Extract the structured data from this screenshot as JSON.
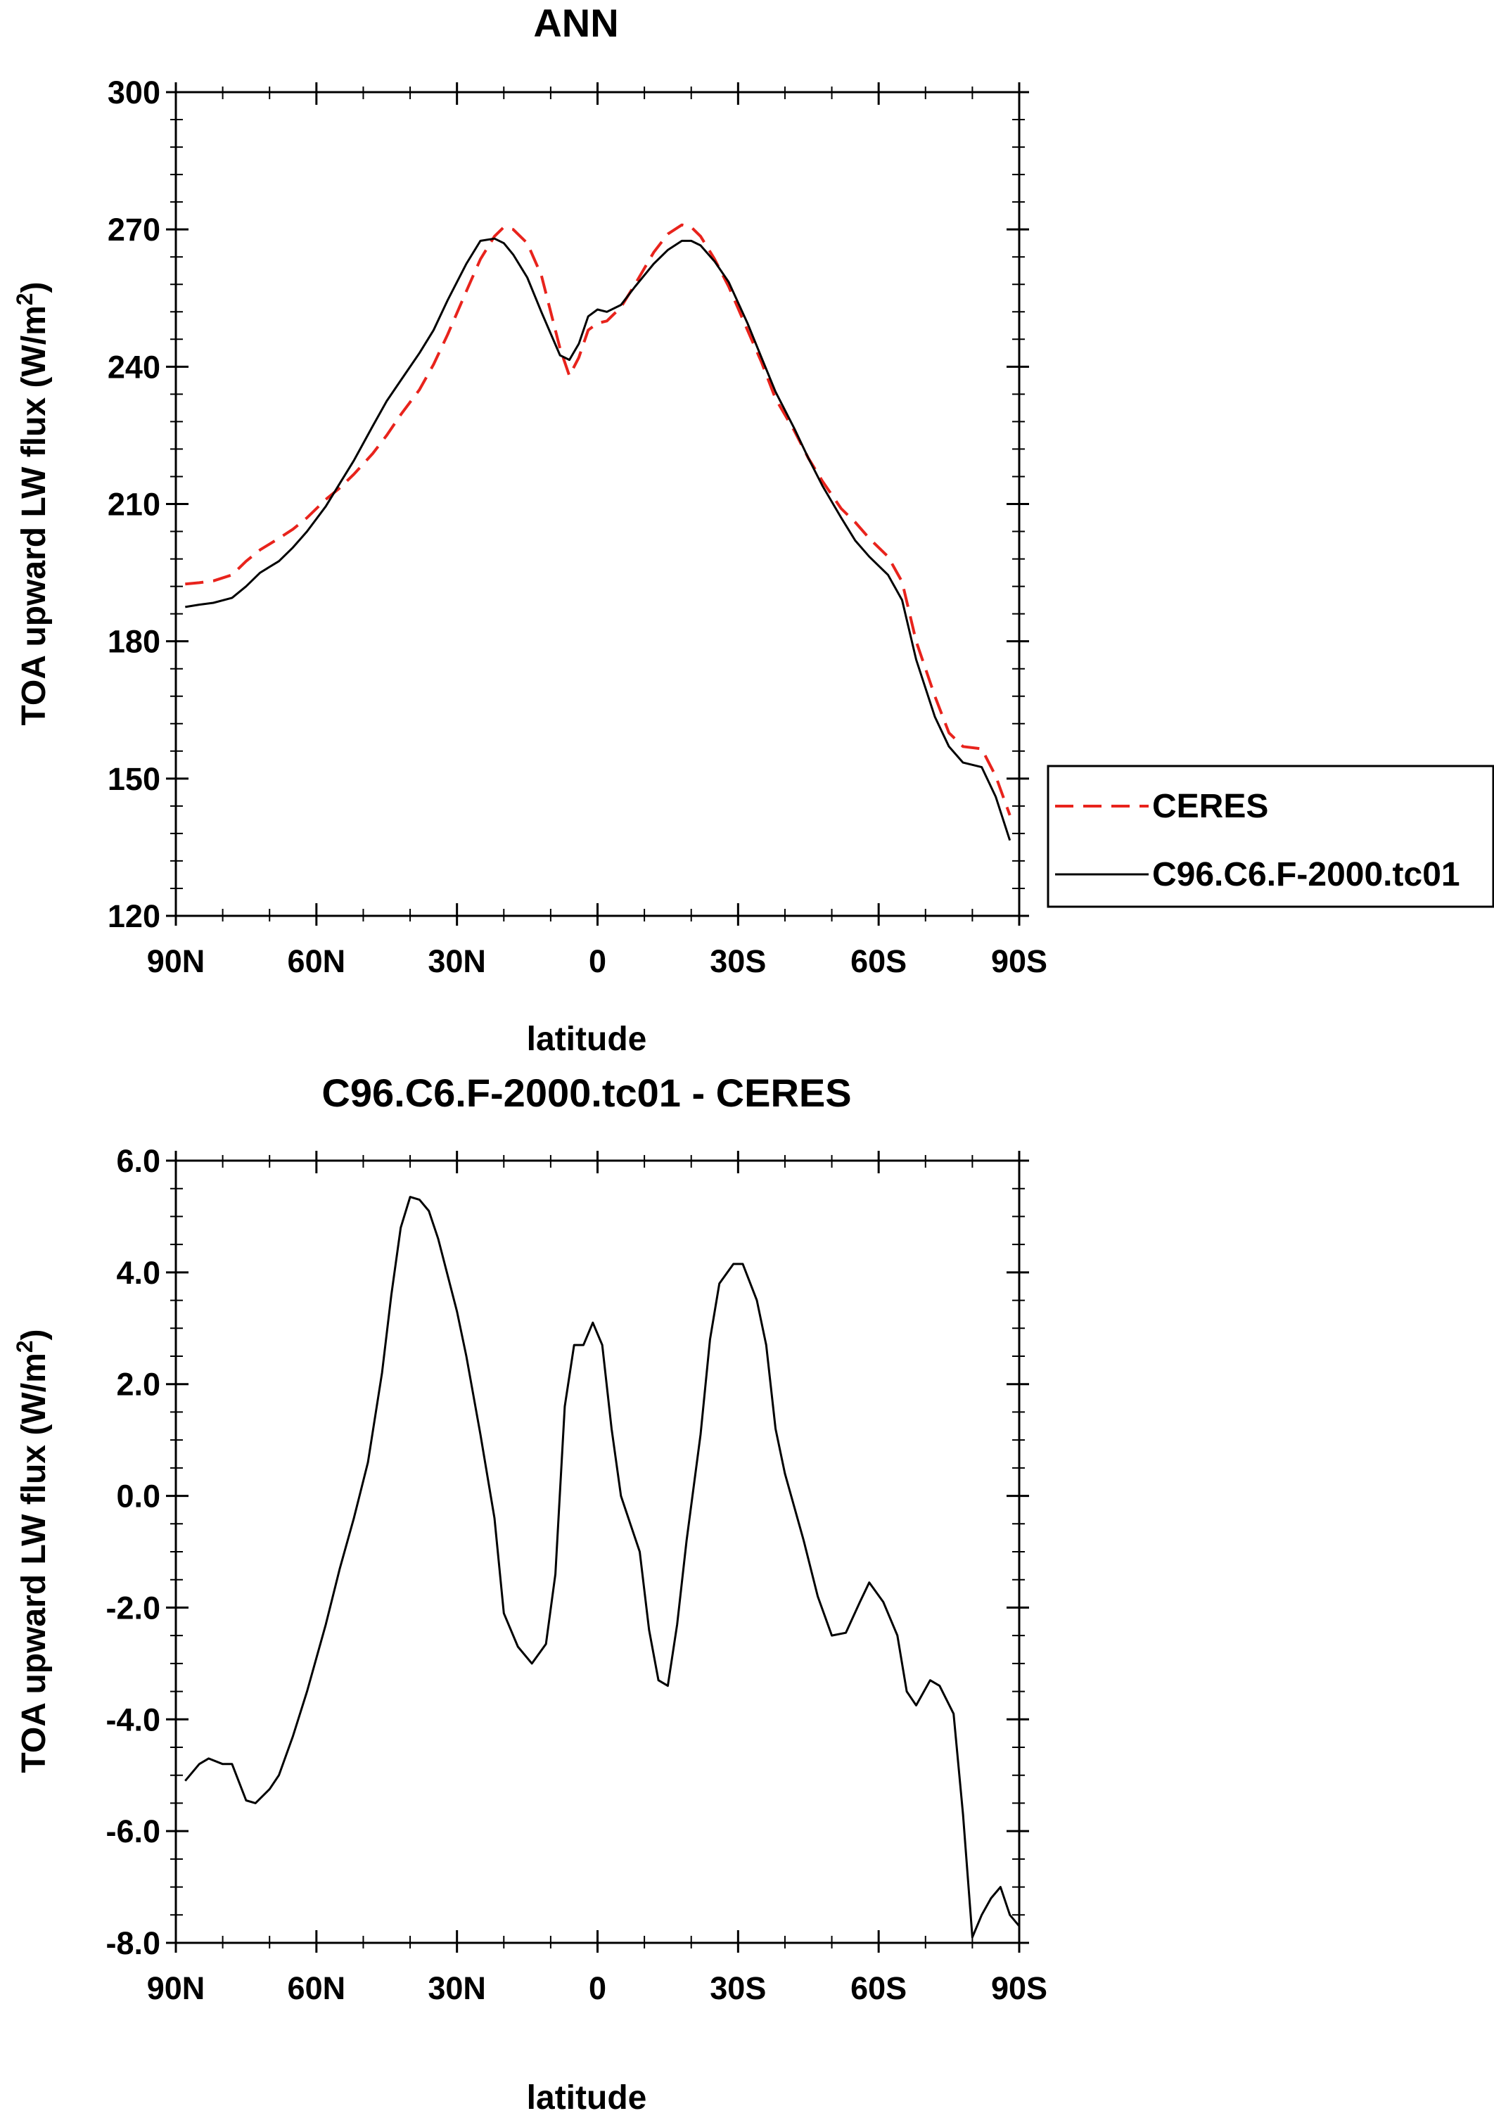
{
  "chart_data": [
    {
      "type": "line",
      "title": "ANN",
      "xlabel": "latitude",
      "ylabel": "TOA upward LW flux (W/m",
      "ylabel_sup": "2",
      "ylabel_end": ")",
      "xlim": [
        -90,
        90
      ],
      "ylim": [
        120,
        300
      ],
      "x_ticks": [
        -90,
        -60,
        -30,
        0,
        30,
        60,
        90
      ],
      "x_tick_labels": [
        "90N",
        "60N",
        "30N",
        "0",
        "30S",
        "60S",
        "90S"
      ],
      "y_ticks": [
        120,
        150,
        180,
        210,
        240,
        270,
        300
      ],
      "y_tick_labels": [
        "120",
        "150",
        "180",
        "210",
        "240",
        "270",
        "300"
      ],
      "legend": {
        "position": "right",
        "entries": [
          "CERES",
          "C96.C6.F-2000.tc01"
        ]
      },
      "series": [
        {
          "name": "CERES",
          "color": "#e8231c",
          "dash": "dashed",
          "x": [
            -88,
            -85,
            -82,
            -78,
            -75,
            -72,
            -68,
            -65,
            -62,
            -58,
            -55,
            -52,
            -48,
            -45,
            -42,
            -38,
            -35,
            -32,
            -28,
            -25,
            -22,
            -20,
            -18,
            -15,
            -12,
            -8,
            -6,
            -4,
            -2,
            0,
            2,
            5,
            8,
            12,
            15,
            18,
            20,
            22,
            25,
            28,
            32,
            35,
            38,
            42,
            45,
            48,
            52,
            55,
            58,
            62,
            65,
            68,
            72,
            75,
            78,
            82,
            85,
            88
          ],
          "values": [
            192.5,
            192.8,
            193.2,
            194.5,
            197.5,
            200,
            202.5,
            204.5,
            207,
            211,
            213.5,
            216.5,
            221,
            225,
            229.5,
            235,
            240.5,
            247,
            256.5,
            263.5,
            268.5,
            270.5,
            270,
            267,
            260,
            244,
            238,
            242,
            248,
            249.5,
            250,
            253,
            258,
            265,
            269,
            271,
            270.5,
            268.5,
            263.5,
            257.5,
            248,
            241,
            233,
            226,
            220,
            215,
            209,
            206,
            202.5,
            198.5,
            193,
            180,
            168,
            160,
            157,
            156.5,
            150.5,
            142
          ]
        },
        {
          "name": "C96.C6.F-2000.tc01",
          "color": "#000000",
          "dash": "solid",
          "x": [
            -88,
            -85,
            -82,
            -78,
            -75,
            -72,
            -68,
            -65,
            -62,
            -58,
            -55,
            -52,
            -48,
            -45,
            -42,
            -38,
            -35,
            -32,
            -28,
            -25,
            -22,
            -20,
            -18,
            -15,
            -12,
            -8,
            -6,
            -4,
            -2,
            0,
            2,
            5,
            8,
            12,
            15,
            18,
            20,
            22,
            25,
            28,
            32,
            35,
            38,
            42,
            45,
            48,
            52,
            55,
            58,
            62,
            65,
            68,
            72,
            75,
            78,
            82,
            85,
            88
          ],
          "values": [
            187.5,
            188,
            188.4,
            189.5,
            192,
            195,
            197.5,
            200.5,
            204,
            209.5,
            214.5,
            219.5,
            227,
            232.5,
            237,
            243,
            248,
            254.5,
            262.5,
            267.5,
            268,
            267,
            264.5,
            259.5,
            252,
            242.5,
            241.5,
            245,
            251,
            252.5,
            252,
            253.5,
            257.5,
            262.5,
            265.5,
            267.5,
            267.5,
            266.5,
            263,
            258.5,
            249.5,
            242,
            234.5,
            226.5,
            220,
            214,
            207,
            202,
            198.5,
            194.5,
            189,
            176,
            163.5,
            157,
            153.5,
            152.5,
            146,
            136.5
          ]
        }
      ]
    },
    {
      "type": "line",
      "title": "C96.C6.F-2000.tc01 - CERES",
      "xlabel": "latitude",
      "ylabel": "TOA upward LW flux (W/m",
      "ylabel_sup": "2",
      "ylabel_end": ")",
      "xlim": [
        -90,
        90
      ],
      "ylim": [
        -8,
        6
      ],
      "x_ticks": [
        -90,
        -60,
        -30,
        0,
        30,
        60,
        90
      ],
      "x_tick_labels": [
        "90N",
        "60N",
        "30N",
        "0",
        "30S",
        "60S",
        "90S"
      ],
      "y_ticks": [
        -8,
        -6,
        -4,
        -2,
        0,
        2,
        4,
        6
      ],
      "y_tick_labels": [
        "-8.0",
        "-6.0",
        "-4.0",
        "-2.0",
        "0.0",
        "2.0",
        "4.0",
        "6.0"
      ],
      "series": [
        {
          "name": "C96.C6.F-2000.tc01 - CERES",
          "color": "#000000",
          "dash": "solid",
          "x": [
            -88,
            -85,
            -83,
            -80,
            -78,
            -75,
            -73,
            -70,
            -68,
            -65,
            -62,
            -58,
            -55,
            -52,
            -49,
            -46,
            -44,
            -42,
            -40,
            -38,
            -36,
            -34,
            -30,
            -28,
            -25,
            -22,
            -20,
            -17,
            -14,
            -11,
            -9,
            -7,
            -5,
            -3,
            -1,
            1,
            3,
            5,
            7,
            9,
            11,
            13,
            15,
            17,
            19,
            22,
            24,
            26,
            29,
            31,
            34,
            36,
            38,
            40,
            44,
            47,
            50,
            53,
            56,
            58,
            61,
            64,
            66,
            68,
            71,
            73,
            76,
            78,
            80,
            82,
            84,
            86,
            88,
            90
          ],
          "values": [
            -5.1,
            -4.8,
            -4.7,
            -4.8,
            -4.8,
            -5.45,
            -5.5,
            -5.25,
            -5.0,
            -4.3,
            -3.5,
            -2.3,
            -1.3,
            -0.4,
            0.6,
            2.2,
            3.6,
            4.8,
            5.35,
            5.3,
            5.1,
            4.6,
            3.3,
            2.5,
            1.1,
            -0.4,
            -2.1,
            -2.7,
            -3.0,
            -2.65,
            -1.4,
            1.6,
            2.7,
            2.7,
            3.1,
            2.7,
            1.2,
            0.0,
            -0.5,
            -1.0,
            -2.4,
            -3.3,
            -3.4,
            -2.3,
            -0.8,
            1.1,
            2.8,
            3.8,
            4.15,
            4.15,
            3.5,
            2.7,
            1.2,
            0.4,
            -0.8,
            -1.8,
            -2.5,
            -2.45,
            -1.9,
            -1.55,
            -1.9,
            -2.5,
            -3.5,
            -3.75,
            -3.3,
            -3.4,
            -3.9,
            -5.7,
            -7.9,
            -7.5,
            -7.2,
            -7.0,
            -7.5,
            -7.7
          ]
        }
      ]
    }
  ]
}
